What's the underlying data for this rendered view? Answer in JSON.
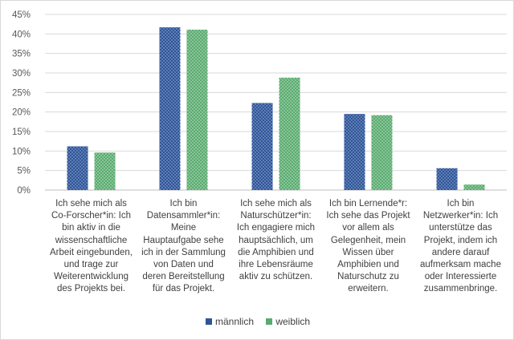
{
  "chart_data": {
    "type": "bar",
    "categories": [
      "Ich sehe mich als Co-Forscher*in: Ich bin aktiv in die wissenschaftliche Arbeit eingebunden, und trage zur Weiterentwicklung des Projekts bei.",
      "Ich bin Datensammler*in: Meine Hauptaufgabe sehe ich in der Sammlung von Daten und deren Bereitstellung für das Projekt.",
      "Ich sehe mich als Naturschützer*in: Ich engagiere mich hauptsächlich, um die Amphibien und ihre Lebensräume aktiv zu schützen.",
      "Ich bin Lernende*r: Ich sehe das Projekt vor allem als Gelegenheit, mein Wissen über Amphibien und Naturschutz zu erweitern.",
      "Ich bin Netzwerker*in: Ich unterstütze das Projekt, indem ich andere darauf aufmerksam mache oder Interessierte zusammenbringe."
    ],
    "category_lines": [
      [
        "Ich sehe mich als",
        "Co-Forscher*in: Ich",
        "bin aktiv in die",
        "wissenschaftliche",
        "Arbeit eingebunden,",
        "und trage zur",
        "Weiterentwicklung",
        "des Projekts bei."
      ],
      [
        "Ich bin",
        "Datensammler*in:",
        "Meine",
        "Hauptaufgabe sehe",
        "ich in der Sammlung",
        "von Daten und",
        "deren Bereitstellung",
        "für das Projekt."
      ],
      [
        "Ich sehe mich als",
        "Naturschützer*in:",
        "Ich engagiere mich",
        "hauptsächlich, um",
        "die Amphibien und",
        "ihre Lebensräume",
        "aktiv zu schützen."
      ],
      [
        "Ich bin Lernende*r:",
        "Ich sehe das Projekt",
        "vor allem als",
        "Gelegenheit, mein",
        "Wissen über",
        "Amphibien und",
        "Naturschutz zu",
        "erweitern."
      ],
      [
        "Ich bin",
        "Netzwerker*in: Ich",
        "unterstütze das",
        "Projekt, indem ich",
        "andere darauf",
        "aufmerksam mache",
        "oder Interessierte",
        "zusammenbringe."
      ]
    ],
    "series": [
      {
        "name": "männlich",
        "color": "#2f5597",
        "values": [
          11.2,
          41.7,
          22.3,
          19.5,
          5.6
        ]
      },
      {
        "name": "weiblich",
        "color": "#5aab6f",
        "values": [
          9.6,
          41.1,
          28.8,
          19.2,
          1.4
        ]
      }
    ],
    "ylim": [
      0,
      45
    ],
    "yticks": [
      "0%",
      "5%",
      "10%",
      "15%",
      "20%",
      "25%",
      "30%",
      "35%",
      "40%",
      "45%"
    ],
    "grid": true,
    "legend": "bottom"
  }
}
